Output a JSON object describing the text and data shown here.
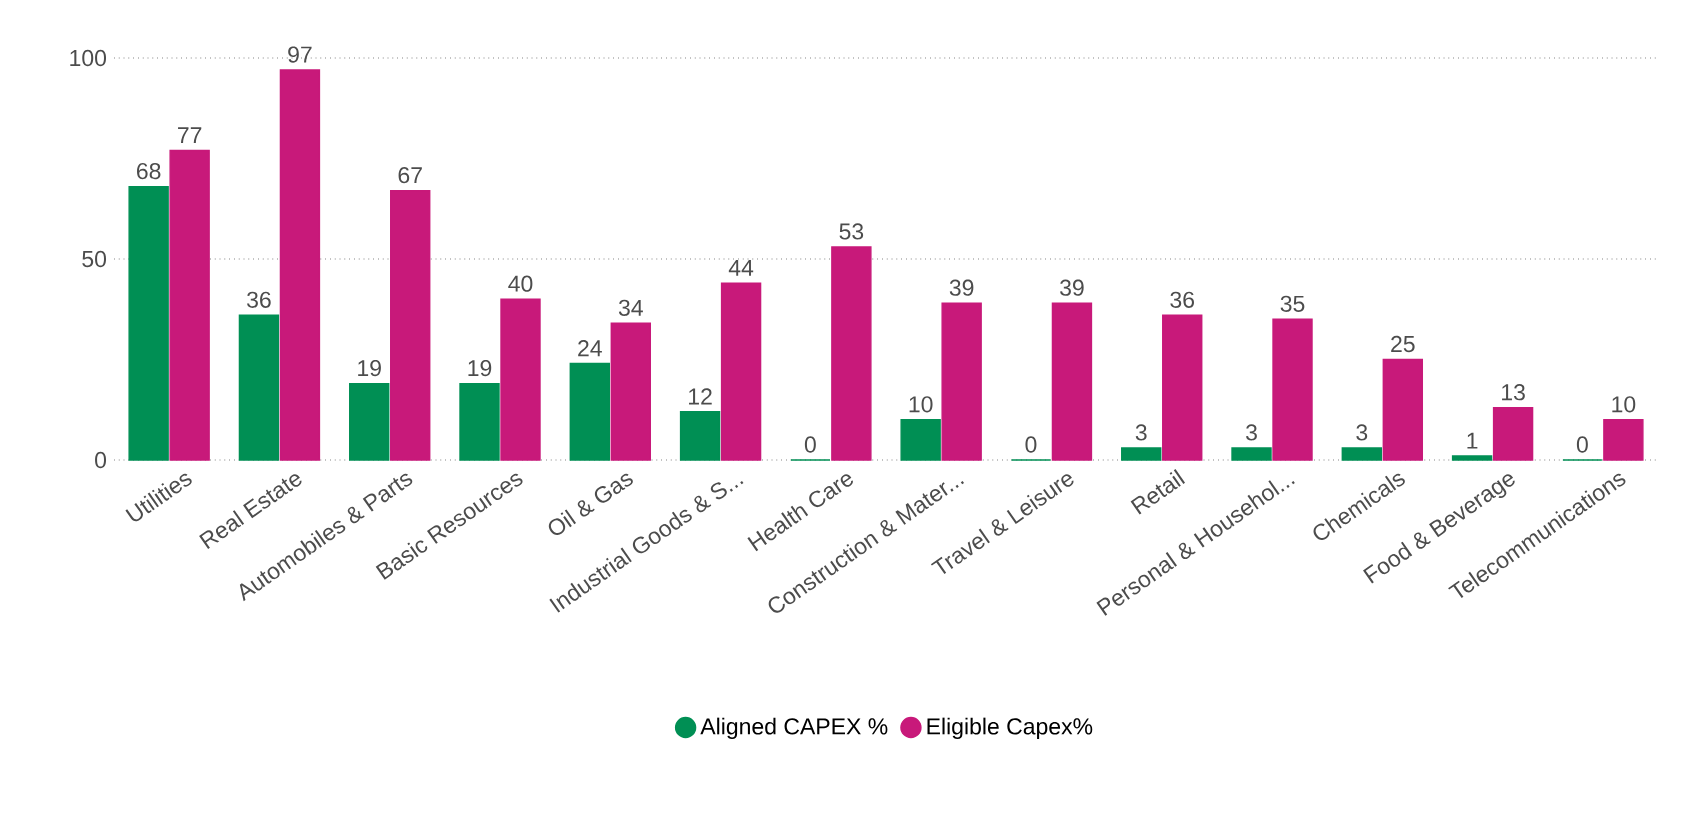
{
  "chart_data": {
    "type": "bar",
    "categories": [
      "Utilities",
      "Real Estate",
      "Automobiles & Parts",
      "Basic Resources",
      "Oil & Gas",
      "Industrial Goods & S...",
      "Health Care",
      "Construction & Mater...",
      "Travel & Leisure",
      "Retail",
      "Personal & Househol...",
      "Chemicals",
      "Food & Beverage",
      "Telecommunications"
    ],
    "series": [
      {
        "name": "Aligned CAPEX %",
        "color": "#008f54",
        "values": [
          68,
          36,
          19,
          19,
          24,
          12,
          0,
          10,
          0,
          3,
          3,
          3,
          1,
          0
        ]
      },
      {
        "name": "Eligible Capex%",
        "color": "#c8197a",
        "values": [
          77,
          97,
          67,
          40,
          34,
          44,
          53,
          39,
          39,
          36,
          35,
          25,
          13,
          10
        ]
      }
    ],
    "ylim": [
      0,
      100
    ],
    "yticks": [
      0,
      50,
      100
    ],
    "grid": "y",
    "legend": "bottom",
    "data_labels": true
  }
}
